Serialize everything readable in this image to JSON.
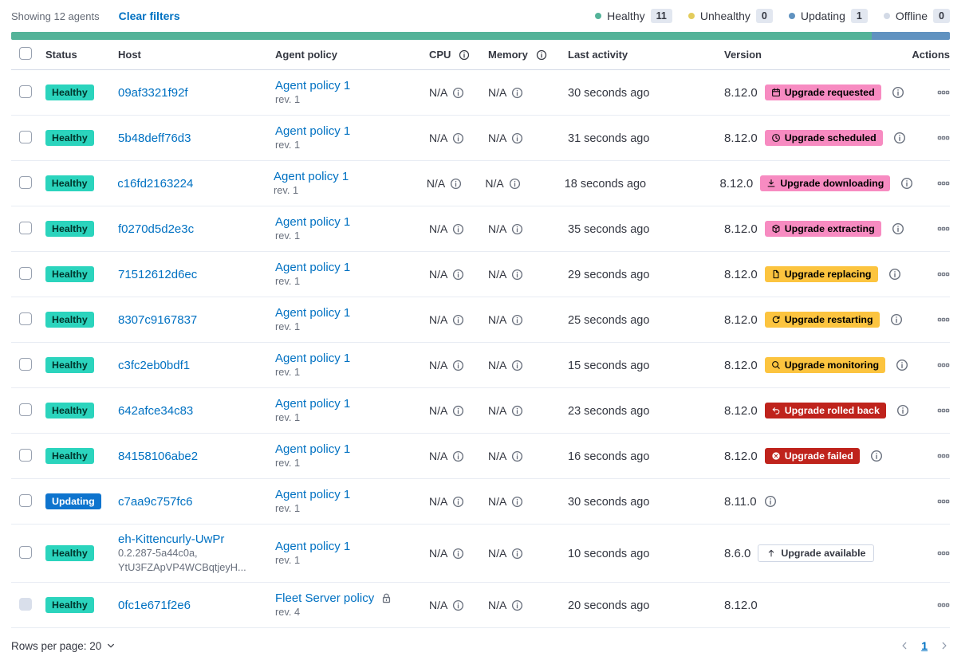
{
  "toolbar": {
    "showing": "Showing 12 agents",
    "clear_filters": "Clear filters"
  },
  "legend": [
    {
      "label": "Healthy",
      "count": "11",
      "color": "#54b399"
    },
    {
      "label": "Unhealthy",
      "count": "0",
      "color": "#e3cc5c"
    },
    {
      "label": "Updating",
      "count": "1",
      "color": "#6092c0"
    },
    {
      "label": "Offline",
      "count": "0",
      "color": "#d3dae6"
    }
  ],
  "health_bar": {
    "segments": [
      {
        "status": "healthy",
        "color": "#54b399",
        "fraction": 0.9167
      },
      {
        "status": "updating",
        "color": "#6092c0",
        "fraction": 0.0833
      }
    ]
  },
  "table": {
    "columns": [
      {
        "label": "Status"
      },
      {
        "label": "Host"
      },
      {
        "label": "Agent policy"
      },
      {
        "label": "CPU",
        "info": true
      },
      {
        "label": "Memory",
        "info": true
      },
      {
        "label": "Last activity"
      },
      {
        "label": "Version"
      },
      {
        "label": "Actions"
      }
    ],
    "rows": [
      {
        "status": "Healthy",
        "status_type": "healthy",
        "host": "09af3321f92f",
        "policy": "Agent policy 1",
        "rev": "rev. 1",
        "cpu": "N/A",
        "memory": "N/A",
        "last_activity": "30 seconds ago",
        "version": "8.12.0",
        "upgrade": {
          "label": "Upgrade requested",
          "style": "pink",
          "icon": "calendar-icon",
          "info": true
        }
      },
      {
        "status": "Healthy",
        "status_type": "healthy",
        "host": "5b48deff76d3",
        "policy": "Agent policy 1",
        "rev": "rev. 1",
        "cpu": "N/A",
        "memory": "N/A",
        "last_activity": "31 seconds ago",
        "version": "8.12.0",
        "upgrade": {
          "label": "Upgrade scheduled",
          "style": "pink",
          "icon": "clock-icon",
          "info": true
        }
      },
      {
        "status": "Healthy",
        "status_type": "healthy",
        "host": "c16fd2163224",
        "policy": "Agent policy 1",
        "rev": "rev. 1",
        "cpu": "N/A",
        "memory": "N/A",
        "last_activity": "18 seconds ago",
        "version": "8.12.0",
        "upgrade": {
          "label": "Upgrade downloading",
          "style": "pink",
          "icon": "download-icon",
          "info": true
        }
      },
      {
        "status": "Healthy",
        "status_type": "healthy",
        "host": "f0270d5d2e3c",
        "policy": "Agent policy 1",
        "rev": "rev. 1",
        "cpu": "N/A",
        "memory": "N/A",
        "last_activity": "35 seconds ago",
        "version": "8.12.0",
        "upgrade": {
          "label": "Upgrade extracting",
          "style": "pink",
          "icon": "package-icon",
          "info": true
        }
      },
      {
        "status": "Healthy",
        "status_type": "healthy",
        "host": "71512612d6ec",
        "policy": "Agent policy 1",
        "rev": "rev. 1",
        "cpu": "N/A",
        "memory": "N/A",
        "last_activity": "29 seconds ago",
        "version": "8.12.0",
        "upgrade": {
          "label": "Upgrade replacing",
          "style": "yellow",
          "icon": "document-icon",
          "info": true
        }
      },
      {
        "status": "Healthy",
        "status_type": "healthy",
        "host": "8307c9167837",
        "policy": "Agent policy 1",
        "rev": "rev. 1",
        "cpu": "N/A",
        "memory": "N/A",
        "last_activity": "25 seconds ago",
        "version": "8.12.0",
        "upgrade": {
          "label": "Upgrade restarting",
          "style": "yellow",
          "icon": "refresh-icon",
          "info": true
        }
      },
      {
        "status": "Healthy",
        "status_type": "healthy",
        "host": "c3fc2eb0bdf1",
        "policy": "Agent policy 1",
        "rev": "rev. 1",
        "cpu": "N/A",
        "memory": "N/A",
        "last_activity": "15 seconds ago",
        "version": "8.12.0",
        "upgrade": {
          "label": "Upgrade monitoring",
          "style": "yellow",
          "icon": "inspect-icon",
          "info": true
        }
      },
      {
        "status": "Healthy",
        "status_type": "healthy",
        "host": "642afce34c83",
        "policy": "Agent policy 1",
        "rev": "rev. 1",
        "cpu": "N/A",
        "memory": "N/A",
        "last_activity": "23 seconds ago",
        "version": "8.12.0",
        "upgrade": {
          "label": "Upgrade rolled back",
          "style": "red",
          "icon": "undo-icon",
          "info": true
        }
      },
      {
        "status": "Healthy",
        "status_type": "healthy",
        "host": "84158106abe2",
        "policy": "Agent policy 1",
        "rev": "rev. 1",
        "cpu": "N/A",
        "memory": "N/A",
        "last_activity": "16 seconds ago",
        "version": "8.12.0",
        "upgrade": {
          "label": "Upgrade failed",
          "style": "red",
          "icon": "cross-circle-icon",
          "info": true
        }
      },
      {
        "status": "Updating",
        "status_type": "updating",
        "host": "c7aa9c757fc6",
        "policy": "Agent policy 1",
        "rev": "rev. 1",
        "cpu": "N/A",
        "memory": "N/A",
        "last_activity": "30 seconds ago",
        "version": "8.11.0",
        "version_info": true
      },
      {
        "status": "Healthy",
        "status_type": "healthy",
        "host": "eh-Kittencurly-UwPr",
        "host_meta": [
          "0.2.287-5a44c0a,",
          "YtU3FZApVP4WCBqtjeyH..."
        ],
        "policy": "Agent policy 1",
        "rev": "rev. 1",
        "cpu": "N/A",
        "memory": "N/A",
        "last_activity": "10 seconds ago",
        "version": "8.6.0",
        "upgrade": {
          "label": "Upgrade available",
          "style": "outline",
          "icon": "arrow-up-icon",
          "info": false
        },
        "tall": true
      },
      {
        "status": "Healthy",
        "status_type": "healthy",
        "host": "0fc1e671f2e6",
        "policy": "Fleet Server policy",
        "policy_locked": true,
        "rev": "rev. 4",
        "cpu": "N/A",
        "memory": "N/A",
        "last_activity": "20 seconds ago",
        "version": "8.12.0",
        "checkbox_disabled": true
      }
    ]
  },
  "footer": {
    "rows_per_page": "Rows per page: 20",
    "page": "1"
  }
}
